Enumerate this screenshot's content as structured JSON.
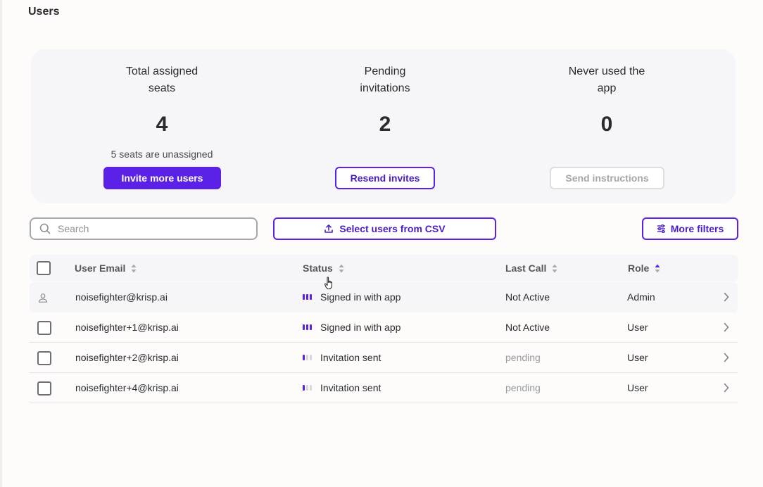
{
  "page": {
    "title": "Users"
  },
  "stats": [
    {
      "label": "Total assigned seats",
      "value": "4",
      "note": "5 seats are unassigned",
      "button": "Invite more users"
    },
    {
      "label": "Pending invitations",
      "value": "2",
      "note": "",
      "button": "Resend invites"
    },
    {
      "label": "Never used the app",
      "value": "0",
      "note": "",
      "button": "Send instructions"
    }
  ],
  "toolbar": {
    "search_placeholder": "Search",
    "search_value": "",
    "csv_label": "Select users from CSV",
    "filters_label": "More filters"
  },
  "table": {
    "columns": [
      "User Email",
      "Status",
      "Last Call",
      "Role"
    ],
    "rows": [
      {
        "email": "noisefighter@krisp.ai",
        "status": "Signed in with app",
        "signal": 3,
        "last_call": "Not Active",
        "role": "Admin",
        "is_current_user": true
      },
      {
        "email": "noisefighter+1@krisp.ai",
        "status": "Signed in with app",
        "signal": 3,
        "last_call": "Not Active",
        "role": "User",
        "is_current_user": false
      },
      {
        "email": "noisefighter+2@krisp.ai",
        "status": "Invitation sent",
        "signal": 1,
        "last_call": "pending",
        "role": "User",
        "is_current_user": false
      },
      {
        "email": "noisefighter+4@krisp.ai",
        "status": "Invitation sent",
        "signal": 1,
        "last_call": "pending",
        "role": "User",
        "is_current_user": false
      }
    ]
  },
  "colors": {
    "accent": "#5b21e6",
    "card_bg": "#f6f6f8",
    "muted_text": "#98989d"
  }
}
